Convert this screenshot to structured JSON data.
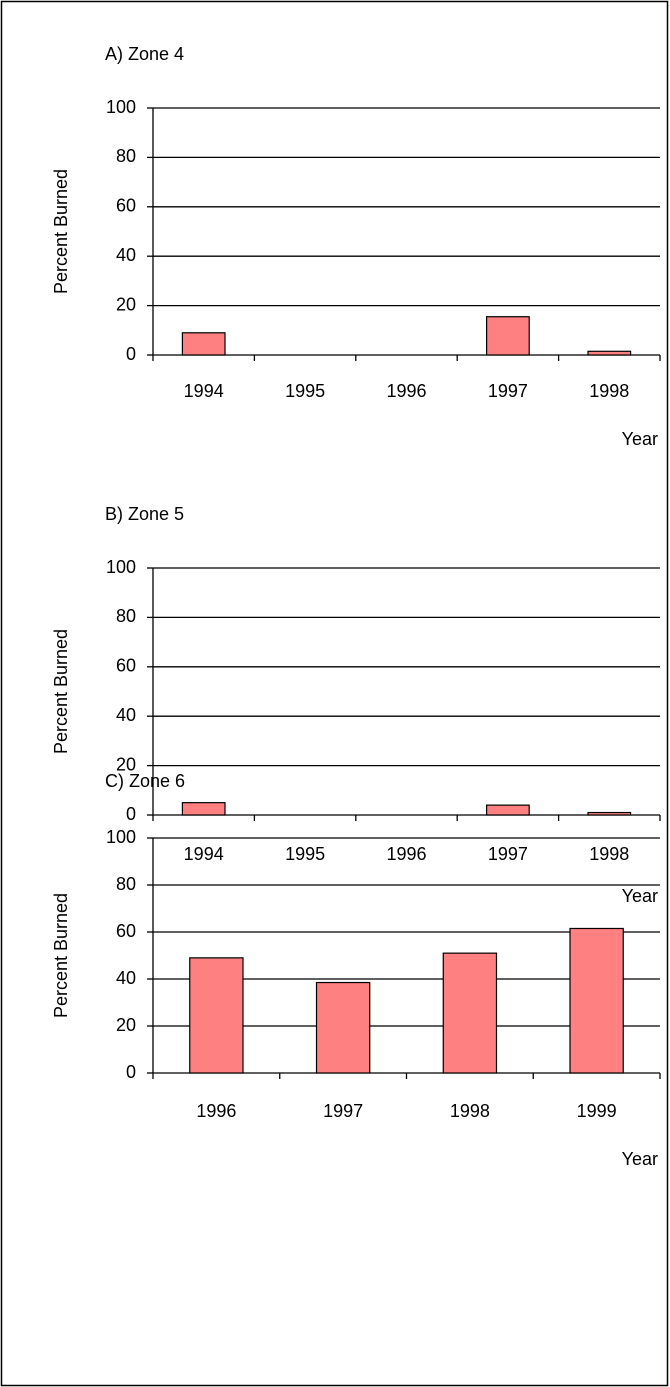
{
  "chart_data": [
    {
      "type": "bar",
      "title": "A) Zone 4",
      "y_label": "Percent Burned",
      "x_label": "Year",
      "categories": [
        "1994",
        "1995",
        "1996",
        "1997",
        "1998"
      ],
      "values": [
        9,
        0,
        0,
        15.5,
        1.5
      ],
      "color": "#ff8080",
      "ylim": [
        0,
        100
      ],
      "yticks": [
        0,
        20,
        40,
        60,
        80,
        100
      ],
      "grid": true
    },
    {
      "type": "bar",
      "title": "B) Zone 5",
      "y_label": "Percent Burned",
      "x_label": "Year",
      "categories": [
        "1994",
        "1995",
        "1996",
        "1997",
        "1998"
      ],
      "values": [
        5,
        0,
        0,
        4,
        1
      ],
      "color": "#ff8080",
      "ylim": [
        0,
        100
      ],
      "yticks": [
        0,
        20,
        40,
        60,
        80,
        100
      ],
      "grid": true
    },
    {
      "type": "bar",
      "title": "C) Zone 6",
      "y_label": "Percent Burned",
      "x_label": "Year",
      "categories": [
        "1996",
        "1997",
        "1998",
        "1999"
      ],
      "values": [
        49,
        38.5,
        51,
        61.5
      ],
      "color": "#ff8080",
      "ylim": [
        0,
        100
      ],
      "yticks": [
        0,
        20,
        40,
        60,
        80,
        100
      ],
      "grid": true
    }
  ]
}
